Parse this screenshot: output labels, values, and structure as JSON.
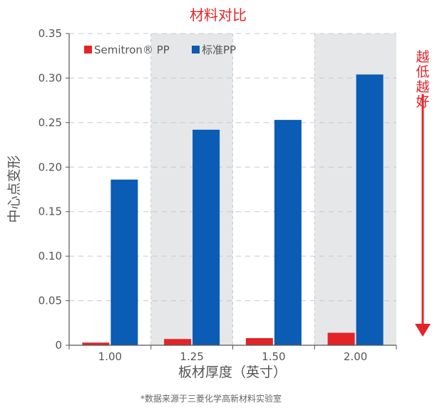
{
  "chart_data": {
    "type": "bar",
    "title": "材料对比",
    "xlabel": "板材厚度（英寸）",
    "ylabel": "中心点变形",
    "categories": [
      "1.00",
      "1.25",
      "1.50",
      "2.00"
    ],
    "series": [
      {
        "name": "Semitron® PP",
        "color": "#e32427",
        "values": [
          0.003,
          0.007,
          0.008,
          0.014
        ]
      },
      {
        "name": "标准PP",
        "color": "#0a5cb4",
        "values": [
          0.186,
          0.242,
          0.253,
          0.304
        ]
      }
    ],
    "ylim": [
      0,
      0.35
    ],
    "yticks": [
      "0",
      "0.05",
      "0.10",
      "0.15",
      "0.20",
      "0.25",
      "0.30",
      "0.35"
    ],
    "grid": true,
    "shaded_bands": [
      1,
      3
    ],
    "legend_position": "top-left",
    "annotation": "越低越好",
    "footnote": "*数据来源于三菱化学高新材料实验室"
  },
  "colors": {
    "band": "#e6e7e9",
    "grid": "#c8c8c8",
    "axis": "#555555",
    "accent": "#e32427"
  }
}
